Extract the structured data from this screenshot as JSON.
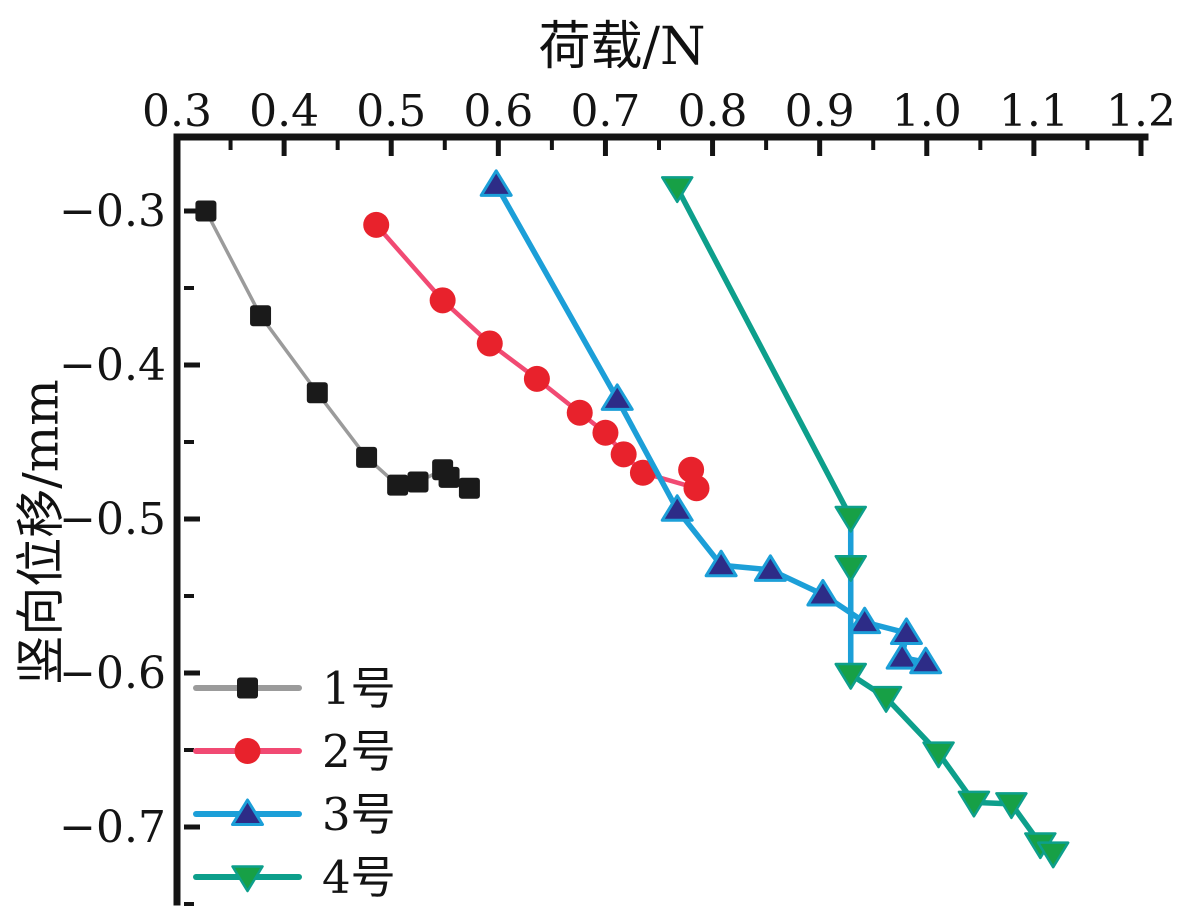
{
  "figure": {
    "background": "#ffffff",
    "axis_color": "#141414",
    "x_axis": {
      "title": "荷载/N",
      "position": "top",
      "tick_labels": [
        "0.3",
        "0.4",
        "0.5",
        "0.6",
        "0.7",
        "0.8",
        "0.9",
        "1.0",
        "1.1",
        "1.2"
      ],
      "tick_values": [
        0.3,
        0.4,
        0.5,
        0.6,
        0.7,
        0.8,
        0.9,
        1.0,
        1.1,
        1.2
      ],
      "minor_tick_values": [
        0.35,
        0.45,
        0.55,
        0.65,
        0.75,
        0.85,
        0.95,
        1.05,
        1.15
      ]
    },
    "y_axis": {
      "title": "竖向位移/mm",
      "position": "left",
      "tick_labels": [
        "−0.3",
        "−0.4",
        "−0.5",
        "−0.6",
        "−0.7"
      ],
      "tick_values": [
        -0.3,
        -0.4,
        -0.5,
        -0.6,
        -0.7
      ],
      "minor_tick_values": [
        -0.35,
        -0.45,
        -0.55,
        -0.65,
        -0.75
      ]
    },
    "legend": {
      "position": "lower-left-inside",
      "entries": [
        "1号",
        "2号",
        "3号",
        "4号"
      ]
    }
  },
  "chart_data": {
    "type": "line",
    "title": "荷载/N",
    "xlabel": "荷载/N",
    "ylabel": "竖向位移/mm",
    "xlim": [
      0.3,
      1.2
    ],
    "ylim": [
      -0.75,
      -0.25
    ],
    "grid": false,
    "legend_position": "lower-left-inside",
    "series": [
      {
        "name": "1号",
        "line_color": "#9b9b9b",
        "marker": "square",
        "marker_color": "#1a1a1a",
        "line_width": 3.5,
        "points": [
          [
            0.327,
            -0.3
          ],
          [
            0.378,
            -0.368
          ],
          [
            0.431,
            -0.418
          ],
          [
            0.477,
            -0.46
          ],
          [
            0.506,
            -0.478
          ],
          [
            0.525,
            -0.476
          ],
          [
            0.548,
            -0.468
          ],
          [
            0.554,
            -0.473
          ],
          [
            0.573,
            -0.48
          ]
        ]
      },
      {
        "name": "2号",
        "line_color": "#f14a73",
        "marker": "circle",
        "marker_color": "#e8222c",
        "line_width": 4.5,
        "points": [
          [
            0.486,
            -0.309
          ],
          [
            0.548,
            -0.358
          ],
          [
            0.592,
            -0.386
          ],
          [
            0.636,
            -0.409
          ],
          [
            0.676,
            -0.431
          ],
          [
            0.7,
            -0.444
          ],
          [
            0.717,
            -0.458
          ],
          [
            0.735,
            -0.47
          ],
          [
            0.785,
            -0.48
          ],
          [
            0.78,
            -0.468
          ]
        ]
      },
      {
        "name": "3号",
        "line_color": "#1c9fd8",
        "marker": "triangle-up",
        "marker_color": "#2d2c87",
        "line_width": 5.5,
        "points": [
          [
            0.598,
            -0.283
          ],
          [
            0.711,
            -0.422
          ],
          [
            0.767,
            -0.494
          ],
          [
            0.808,
            -0.53
          ],
          [
            0.854,
            -0.533
          ],
          [
            0.903,
            -0.549
          ],
          [
            0.942,
            -0.567
          ],
          [
            0.981,
            -0.574
          ],
          [
            0.977,
            -0.59
          ],
          [
            0.999,
            -0.593
          ]
        ]
      },
      {
        "name": "4号",
        "line_color": "#0d9f8b",
        "marker": "triangle-down",
        "marker_color": "#17a046",
        "line_width": 5.5,
        "points": [
          [
            0.767,
            -0.285
          ],
          [
            0.929,
            -0.499
          ],
          [
            0.929,
            -0.531
          ],
          [
            0.929,
            -0.601
          ],
          [
            0.962,
            -0.616
          ],
          [
            1.011,
            -0.652
          ],
          [
            1.044,
            -0.684
          ],
          [
            1.079,
            -0.685
          ],
          [
            1.106,
            -0.711
          ],
          [
            1.118,
            -0.717
          ]
        ]
      }
    ],
    "annotations": {
      "load_drop_segment": {
        "description": "vertical cyan segment on 4号 curve at constant load",
        "x": 0.929,
        "y_from": -0.499,
        "y_to": -0.601,
        "color": "#1c9fd8",
        "width": 5.5
      }
    }
  }
}
